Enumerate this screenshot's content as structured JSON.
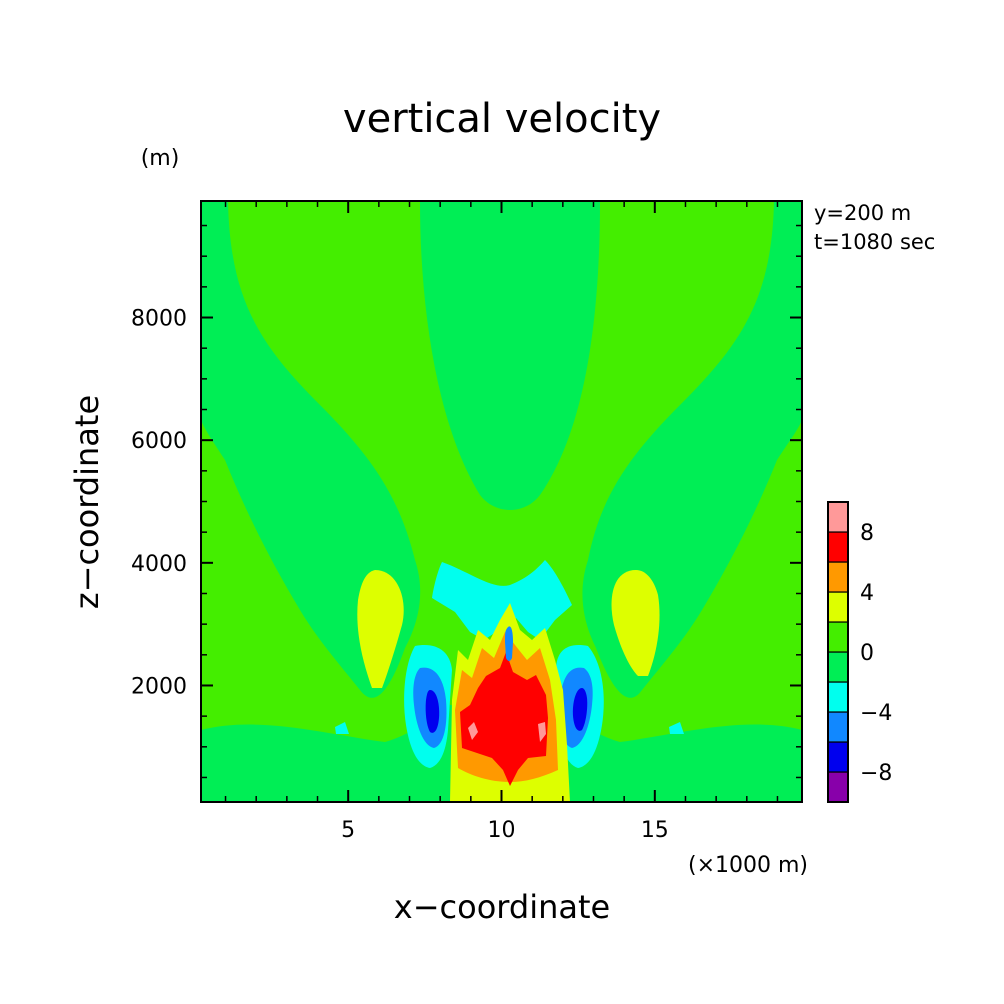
{
  "chart_data": {
    "type": "heatmap",
    "title": "vertical velocity",
    "xlabel": "x−coordinate",
    "ylabel": "z−coordinate",
    "x_unit": "(×1000 m)",
    "y_unit": "(m)",
    "annotations": [
      "y=200 m",
      "t=1080 sec"
    ],
    "xlim": [
      0.2,
      19.8
    ],
    "ylim": [
      100,
      9900
    ],
    "x_ticks": [
      {
        "value": 5,
        "label": "5"
      },
      {
        "value": 10,
        "label": "10"
      },
      {
        "value": 15,
        "label": "15"
      }
    ],
    "y_ticks": [
      {
        "value": 2000,
        "label": "2000"
      },
      {
        "value": 4000,
        "label": "4000"
      },
      {
        "value": 6000,
        "label": "6000"
      },
      {
        "value": 8000,
        "label": "8000"
      }
    ],
    "colorbar": {
      "levels": [
        -10,
        -8,
        -6,
        -4,
        -2,
        0,
        2,
        4,
        6,
        8,
        10
      ],
      "tick_labels": [
        {
          "value": 8,
          "label": "8"
        },
        {
          "value": 4,
          "label": "4"
        },
        {
          "value": 0,
          "label": "0"
        },
        {
          "value": -4,
          "label": "−4"
        },
        {
          "value": -8,
          "label": "−8"
        }
      ],
      "colors": [
        "#8800aa",
        "#0000ee",
        "#1188ff",
        "#00ffee",
        "#00ee55",
        "#44ee00",
        "#ddff00",
        "#ff9900",
        "#ff0000",
        "#ff9999"
      ]
    },
    "grid": false,
    "legend": "right (colorbar)"
  }
}
